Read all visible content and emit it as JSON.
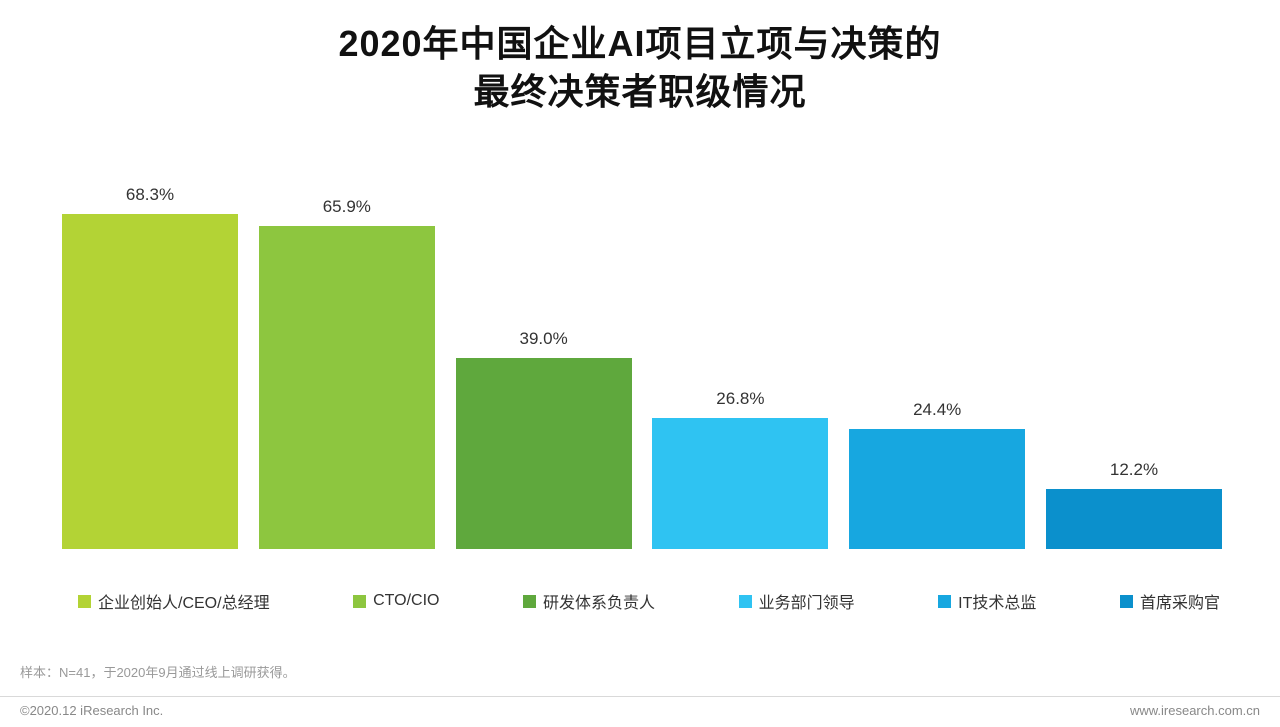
{
  "title": {
    "line1": "2020年中国企业AI项目立项与决策的",
    "line2": "最终决策者职级情况"
  },
  "chart_data": {
    "type": "bar",
    "title": "2020年中国企业AI项目立项与决策的最终决策者职级情况",
    "categories": [
      "企业创始人/CEO/总经理",
      "CTO/CIO",
      "研发体系负责人",
      "业务部门领导",
      "IT技术总监",
      "首席采购官"
    ],
    "values": [
      68.3,
      65.9,
      39.0,
      26.8,
      24.4,
      12.2
    ],
    "value_labels": [
      "68.3%",
      "65.9%",
      "39.0%",
      "26.8%",
      "24.4%",
      "12.2%"
    ],
    "colors": [
      "#b3d335",
      "#8dc63f",
      "#5fa83d",
      "#2fc3f2",
      "#17a7e0",
      "#0b90cc"
    ],
    "xlabel": "",
    "ylabel": "",
    "ylim": [
      0,
      70
    ],
    "grid": false,
    "legend_position": "bottom"
  },
  "footnote": "样本：N=41，于2020年9月通过线上调研获得。",
  "footer": {
    "copyright": "©2020.12 iResearch Inc.",
    "website": "www.iresearch.com.cn"
  }
}
